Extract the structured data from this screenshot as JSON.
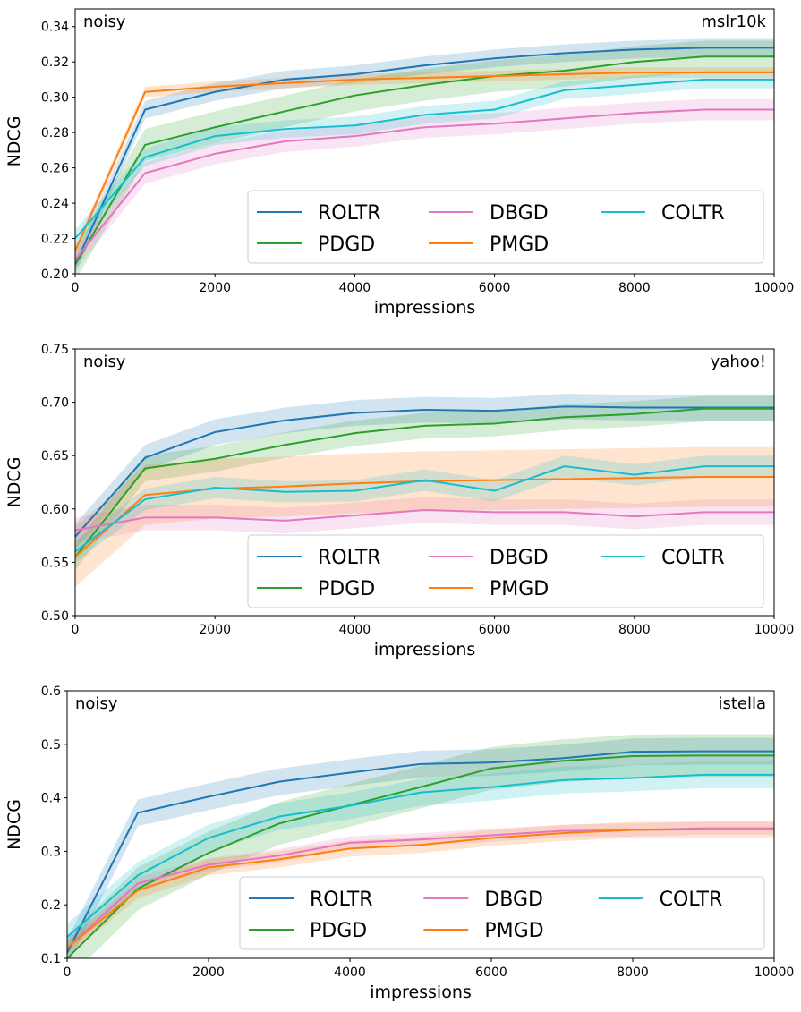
{
  "chart_data": [
    {
      "type": "line",
      "annotation_left": "noisy",
      "annotation_right": "mslr10k",
      "xlabel": "impressions",
      "ylabel": "NDCG",
      "xlim": [
        0,
        10000
      ],
      "ylim": [
        0.2,
        0.35
      ],
      "xticks": [
        0,
        2000,
        4000,
        6000,
        8000,
        10000
      ],
      "yticks": [
        0.2,
        0.22,
        0.24,
        0.26,
        0.28,
        0.3,
        0.32,
        0.34
      ],
      "ytick_labels": [
        "0.20",
        "0.22",
        "0.24",
        "0.26",
        "0.28",
        "0.30",
        "0.32",
        "0.34"
      ],
      "legend": "lower-right",
      "grid": false,
      "x": [
        0,
        1000,
        2000,
        3000,
        4000,
        5000,
        6000,
        7000,
        8000,
        9000,
        10000
      ],
      "series": [
        {
          "name": "ROLTR",
          "color": "#1f77b4",
          "values": [
            0.205,
            0.293,
            0.303,
            0.31,
            0.313,
            0.318,
            0.322,
            0.325,
            0.327,
            0.328,
            0.328
          ],
          "band": 0.005
        },
        {
          "name": "PDGD",
          "color": "#2ca02c",
          "values": [
            0.205,
            0.273,
            0.283,
            0.292,
            0.301,
            0.307,
            0.312,
            0.315,
            0.32,
            0.323,
            0.323
          ],
          "band": 0.009
        },
        {
          "name": "DBGD",
          "color": "#e377c2",
          "values": [
            0.208,
            0.257,
            0.268,
            0.275,
            0.278,
            0.283,
            0.285,
            0.288,
            0.291,
            0.293,
            0.293
          ],
          "band": 0.006
        },
        {
          "name": "PMGD",
          "color": "#ff7f0e",
          "values": [
            0.213,
            0.303,
            0.306,
            0.308,
            0.31,
            0.311,
            0.312,
            0.313,
            0.314,
            0.314,
            0.314
          ],
          "band": 0.003
        },
        {
          "name": "COLTR",
          "color": "#17becf",
          "values": [
            0.22,
            0.266,
            0.278,
            0.282,
            0.284,
            0.29,
            0.293,
            0.304,
            0.307,
            0.31,
            0.31
          ],
          "band": 0.005
        }
      ]
    },
    {
      "type": "line",
      "annotation_left": "noisy",
      "annotation_right": "yahoo!",
      "xlabel": "impressions",
      "ylabel": "NDCG",
      "xlim": [
        0,
        10000
      ],
      "ylim": [
        0.5,
        0.75
      ],
      "xticks": [
        0,
        2000,
        4000,
        6000,
        8000,
        10000
      ],
      "yticks": [
        0.5,
        0.55,
        0.6,
        0.65,
        0.7,
        0.75
      ],
      "ytick_labels": [
        "0.50",
        "0.55",
        "0.60",
        "0.65",
        "0.70",
        "0.75"
      ],
      "legend": "lower-right",
      "grid": false,
      "x": [
        0,
        1000,
        2000,
        3000,
        4000,
        5000,
        6000,
        7000,
        8000,
        9000,
        10000
      ],
      "series": [
        {
          "name": "ROLTR",
          "color": "#1f77b4",
          "values": [
            0.574,
            0.648,
            0.672,
            0.683,
            0.69,
            0.693,
            0.692,
            0.696,
            0.695,
            0.695,
            0.695
          ],
          "band": 0.012
        },
        {
          "name": "PDGD",
          "color": "#2ca02c",
          "values": [
            0.555,
            0.638,
            0.647,
            0.66,
            0.671,
            0.678,
            0.68,
            0.686,
            0.689,
            0.694,
            0.694
          ],
          "band": 0.012
        },
        {
          "name": "DBGD",
          "color": "#e377c2",
          "values": [
            0.58,
            0.592,
            0.592,
            0.589,
            0.594,
            0.599,
            0.597,
            0.597,
            0.593,
            0.597,
            0.597
          ],
          "band": 0.012
        },
        {
          "name": "PMGD",
          "color": "#ff7f0e",
          "values": [
            0.555,
            0.613,
            0.619,
            0.621,
            0.624,
            0.626,
            0.627,
            0.628,
            0.629,
            0.63,
            0.63
          ],
          "band": 0.028
        },
        {
          "name": "COLTR",
          "color": "#17becf",
          "values": [
            0.56,
            0.609,
            0.62,
            0.616,
            0.617,
            0.627,
            0.617,
            0.64,
            0.632,
            0.64,
            0.64
          ],
          "band": 0.01
        }
      ]
    },
    {
      "type": "line",
      "annotation_left": "noisy",
      "annotation_right": "istella",
      "xlabel": "impressions",
      "ylabel": "NDCG",
      "xlim": [
        0,
        10000
      ],
      "ylim": [
        0.1,
        0.6
      ],
      "xticks": [
        0,
        2000,
        4000,
        6000,
        8000,
        10000
      ],
      "yticks": [
        0.1,
        0.2,
        0.3,
        0.4,
        0.5,
        0.6
      ],
      "ytick_labels": [
        "0.1",
        "0.2",
        "0.3",
        "0.4",
        "0.5",
        "0.6"
      ],
      "legend": "lower-right",
      "grid": false,
      "x": [
        0,
        1000,
        2000,
        3000,
        4000,
        5000,
        6000,
        7000,
        8000,
        9000,
        10000
      ],
      "series": [
        {
          "name": "ROLTR",
          "color": "#1f77b4",
          "values": [
            0.11,
            0.372,
            0.402,
            0.43,
            0.447,
            0.463,
            0.466,
            0.474,
            0.486,
            0.487,
            0.487
          ],
          "band": 0.025
        },
        {
          "name": "PDGD",
          "color": "#2ca02c",
          "values": [
            0.1,
            0.23,
            0.297,
            0.352,
            0.386,
            0.42,
            0.455,
            0.469,
            0.478,
            0.479,
            0.479
          ],
          "band": 0.04
        },
        {
          "name": "DBGD",
          "color": "#e377c2",
          "values": [
            0.12,
            0.24,
            0.275,
            0.292,
            0.316,
            0.322,
            0.33,
            0.338,
            0.34,
            0.343,
            0.343
          ],
          "band": 0.012
        },
        {
          "name": "PMGD",
          "color": "#ff7f0e",
          "values": [
            0.12,
            0.227,
            0.27,
            0.285,
            0.305,
            0.312,
            0.325,
            0.334,
            0.34,
            0.341,
            0.341
          ],
          "band": 0.015
        },
        {
          "name": "COLTR",
          "color": "#17becf",
          "values": [
            0.14,
            0.255,
            0.325,
            0.365,
            0.385,
            0.41,
            0.42,
            0.433,
            0.437,
            0.443,
            0.443
          ],
          "band": 0.025
        }
      ]
    }
  ]
}
